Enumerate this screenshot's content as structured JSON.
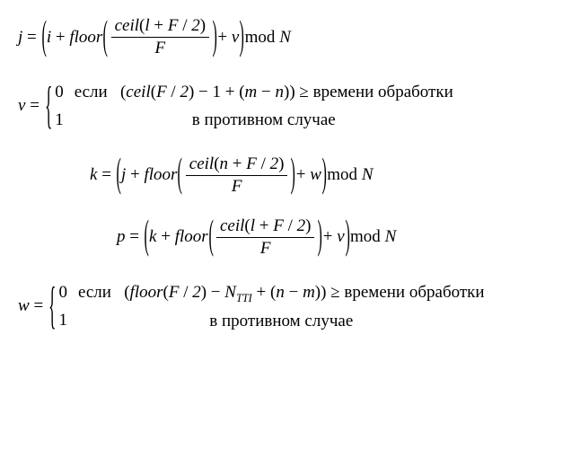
{
  "eq1": {
    "lhs": "j",
    "outer_var": "i",
    "func_outer": "floor",
    "func_inner": "ceil",
    "inner_arg1": "l",
    "inner_arg2": "F",
    "inner_div": "2",
    "den": "F",
    "plus_var": "v",
    "mod": "mod",
    "mod_arg": "N"
  },
  "eq2": {
    "lhs": "v",
    "val0": "0",
    "val1": "1",
    "if_word": "если",
    "func": "ceil",
    "arg1": "F",
    "div": "2",
    "minus1": "1",
    "m": "m",
    "n": "n",
    "geq_text": "времени обработки",
    "else_text": "в противном случае"
  },
  "eq3": {
    "lhs": "k",
    "outer_var": "j",
    "func_outer": "floor",
    "func_inner": "ceil",
    "inner_arg1": "n",
    "inner_arg2": "F",
    "inner_div": "2",
    "den": "F",
    "plus_var": "w",
    "mod": "mod",
    "mod_arg": "N"
  },
  "eq4": {
    "lhs": "p",
    "outer_var": "k",
    "func_outer": "floor",
    "func_inner": "ceil",
    "inner_arg1": "l",
    "inner_arg2": "F",
    "inner_div": "2",
    "den": "F",
    "plus_var": "v",
    "mod": "mod",
    "mod_arg": "N"
  },
  "eq5": {
    "lhs": "w",
    "val0": "0",
    "val1": "1",
    "if_word": "если",
    "func": "floor",
    "arg1": "F",
    "div": "2",
    "n_sub": "N",
    "sub": "TTI",
    "n": "n",
    "m": "m",
    "geq_text": "времени обработки",
    "else_text": "в противном случае"
  }
}
